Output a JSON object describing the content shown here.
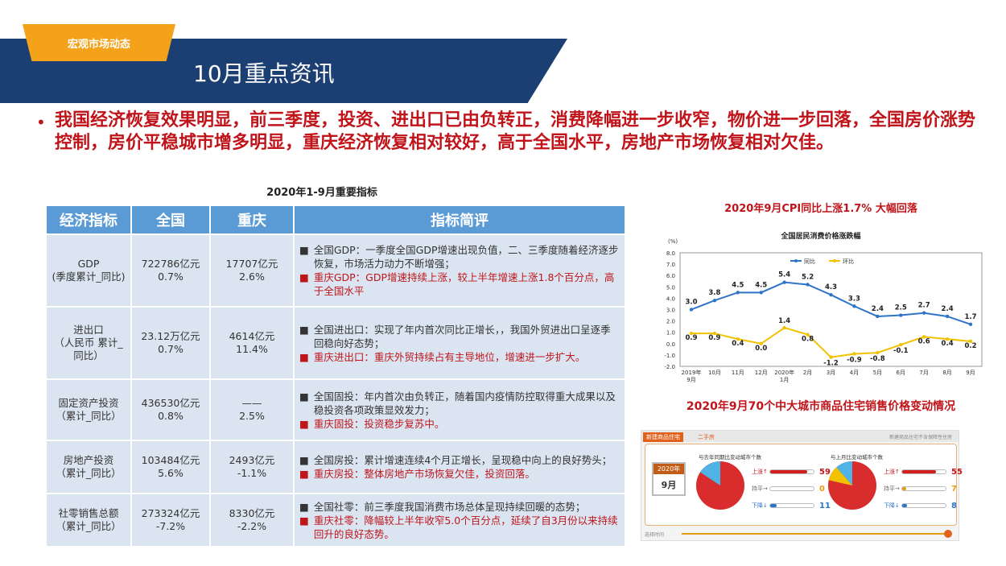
{
  "header": {
    "tag": "宏观市场动态",
    "title": "10月重点资讯"
  },
  "headline": {
    "bullet": "•",
    "text": "我国经济恢复效果明显，前三季度，投资、进出口已由负转正，消费降幅进一步收窄，物价进一步回落，全国房价涨势控制，房价平稳城市增多明显，重庆经济恢复相对较好，高于全国水平，房地产市场恢复相对欠佳。"
  },
  "table": {
    "title": "2020年1-9月重要指标",
    "headers": [
      "经济指标",
      "全国",
      "重庆",
      "指标简评"
    ],
    "rows": [
      {
        "indicator": "GDP\n(季度累计_同比)",
        "national": "722786亿元\n0.7%",
        "chongqing": "17707亿元\n2.6%",
        "comment_national": "全国GDP：一季度全国GDP增速出现负值，二、三季度随着经济逐步恢复，市场活力动力不断增强；",
        "comment_cq": "重庆GDP：GDP增速持续上涨，较上半年增速上涨1.8个百分点，高于全国水平"
      },
      {
        "indicator": "进出口\n（人民币 累计_同比）",
        "national": "23.12万亿元\n0.7%",
        "chongqing": "4614亿元\n11.4%",
        "comment_national": "全国进出口：实现了年内首次同比正增长，，我国外贸进出口呈逐季回稳向好态势；",
        "comment_cq": "重庆进出口：重庆外贸持续占有主导地位，增速进一步扩大。"
      },
      {
        "indicator": "固定资产投资\n（累计_同比）",
        "national": "436530亿元\n0.8%",
        "chongqing": "——\n2.5%",
        "comment_national": "全国固投：年内首次由负转正，随着国内疫情防控取得重大成果以及稳投资各项政策显效发力；",
        "comment_cq": "重庆固投：投资稳步复苏中。"
      },
      {
        "indicator": "房地产投资\n（累计_同比）",
        "national": "103484亿元\n5.6%",
        "chongqing": "2493亿元\n-1.1%",
        "comment_national": "全国房投：累计增速连续4个月正增长，呈现稳中向上的良好势头；",
        "comment_cq": "重庆房投：整体房地产市场恢复欠佳，投资回落。"
      },
      {
        "indicator": "社零销售总额\n（累计_同比）",
        "national": "273324亿元\n-7.2%",
        "chongqing": "8330亿元\n-2.2%",
        "comment_national": "全国社零：前三季度我国消费市场总体呈现持续回暖的态势；",
        "comment_cq": "重庆社零：降幅较上半年收窄5.0个百分点，延续了自3月份以来持续回升的良好态势。"
      }
    ]
  },
  "cpi": {
    "title": "2020年9月CPI同比上涨1.7% 大幅回落",
    "subtitle": "全国居民消费价格涨跌幅"
  },
  "chart_data": {
    "type": "line",
    "title": "全国居民消费价格涨跌幅",
    "ylabel": "(%)",
    "ylim": [
      -2.0,
      8.0
    ],
    "yticks": [
      "8.0",
      "7.0",
      "6.0",
      "5.0",
      "4.0",
      "3.0",
      "2.0",
      "1.0",
      "0.0",
      "-1.0",
      "-2.0"
    ],
    "categories": [
      "2019年\n9月",
      "10月",
      "11月",
      "12月",
      "2020年\n1月",
      "2月",
      "3月",
      "4月",
      "5月",
      "6月",
      "7月",
      "8月",
      "9月"
    ],
    "series": [
      {
        "name": "同比",
        "color": "#2e75c9",
        "values": [
          3.0,
          3.8,
          4.5,
          4.5,
          5.4,
          5.2,
          4.3,
          3.3,
          2.4,
          2.5,
          2.7,
          2.4,
          1.7
        ],
        "labels": [
          "3.0",
          "3.8",
          "4.5",
          "4.5",
          "5.4",
          "5.2",
          "4.3",
          "3.3",
          "2.4",
          "2.5",
          "2.7",
          "2.4",
          "1.7"
        ]
      },
      {
        "name": "环比",
        "color": "#f2c200",
        "values": [
          0.9,
          0.9,
          0.4,
          0.0,
          1.4,
          0.8,
          -1.2,
          -0.9,
          -0.8,
          -0.1,
          0.6,
          0.4,
          0.2
        ],
        "labels": [
          "0.9",
          "0.9",
          "0.4",
          "0.0",
          "1.4",
          "0.8",
          "-1.2",
          "-0.9",
          "-0.8",
          "-0.1",
          "0.6",
          "0.4",
          "0.2"
        ]
      }
    ]
  },
  "housing": {
    "title": "2020年9月70个中大城市商品住宅销售价格变动情况",
    "tab_new": "新建商品住宅",
    "tab_second": "二手房",
    "note": "新建商品住宅不含保障性住房",
    "date_year": "2020年",
    "date_month": "9月",
    "yoy": {
      "title": "与去年同期比变动城市个数",
      "up_label": "上涨↑",
      "up": 59,
      "flat_label": "持平→",
      "flat": 0,
      "down_label": "下降↓",
      "down": 11
    },
    "mom": {
      "title": "与上月比变动城市个数",
      "up_label": "上涨↑",
      "up": 55,
      "flat_label": "持平→",
      "flat": 7,
      "down_label": "下降↓",
      "down": 8
    },
    "timeline_label": "选择时间"
  }
}
